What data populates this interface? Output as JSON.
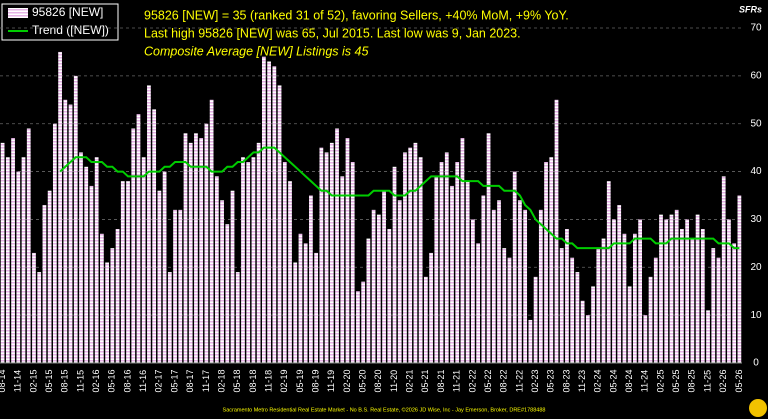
{
  "chart_data": {
    "type": "bar",
    "annotations": [
      "95826 [NEW] = 35 (ranked 31 of 52), favoring Sellers, +40% MoM, +9% YoY.",
      "Last high 95826 [NEW] was 65, Jul 2015. Last low was 9, Jan 2023.",
      "Composite Average [NEW] Listings is 45"
    ],
    "y_axis_label": "SFRs",
    "footer": "Sacramento Metro Residential Real Estate Market - No B.S. Real Estate, ©2026 JD Wise, Inc - Jay Emerson, Broker, DRE#1788488",
    "categories": [
      "08-14",
      null,
      null,
      "11-14",
      null,
      null,
      "02-15",
      null,
      null,
      "05-15",
      null,
      null,
      "08-15",
      null,
      null,
      "11-15",
      null,
      null,
      "02-16",
      null,
      null,
      "05-16",
      null,
      null,
      "08-16",
      null,
      null,
      "11-16",
      null,
      null,
      "02-17",
      null,
      null,
      "05-17",
      null,
      null,
      "08-17",
      null,
      null,
      "11-17",
      null,
      null,
      "02-18",
      null,
      null,
      "05-18",
      null,
      null,
      "08-18",
      null,
      null,
      "11-18",
      null,
      null,
      "02-19",
      null,
      null,
      "05-19",
      null,
      null,
      "08-19",
      null,
      null,
      "11-19",
      null,
      null,
      "02-20",
      null,
      null,
      "05-20",
      null,
      null,
      "08-20",
      null,
      null,
      "11-20",
      null,
      null,
      "02-21",
      null,
      null,
      "05-21",
      null,
      null,
      "08-21",
      null,
      null,
      "11-21",
      null,
      null,
      "02-22",
      null,
      null,
      "05-22",
      null,
      null,
      "08-22",
      null,
      null,
      "11-22",
      null,
      null,
      "02-23",
      null,
      null,
      "05-23",
      null,
      null,
      "08-23",
      null,
      null,
      "11-23",
      null,
      null,
      "02-24",
      null,
      null,
      "05-24",
      null,
      null,
      "08-24",
      null,
      null,
      "11-24",
      null,
      null,
      "02-25",
      null,
      null,
      "05-25",
      null,
      null,
      "08-25",
      null,
      null,
      "11-25",
      null,
      null,
      "02-26",
      null,
      null,
      "05-26"
    ],
    "series": [
      {
        "name": "95826 [NEW]",
        "type": "bar",
        "color": "#e6b3e6",
        "values": [
          46,
          43,
          47,
          40,
          43,
          49,
          23,
          19,
          33,
          36,
          50,
          65,
          55,
          54,
          60,
          44,
          41,
          37,
          43,
          27,
          21,
          24,
          28,
          38,
          38,
          49,
          52,
          43,
          58,
          53,
          36,
          40,
          19,
          32,
          32,
          48,
          46,
          48,
          47,
          50,
          55,
          39,
          34,
          29,
          36,
          19,
          43,
          42,
          43,
          46,
          64,
          63,
          62,
          58,
          42,
          38,
          21,
          27,
          25,
          35,
          23,
          45,
          44,
          46,
          49,
          39,
          47,
          42,
          15,
          17,
          26,
          32,
          31,
          36,
          28,
          41,
          34,
          44,
          45,
          46,
          43,
          18,
          23,
          39,
          42,
          44,
          37,
          42,
          47,
          38,
          30,
          25,
          35,
          48,
          32,
          34,
          24,
          22,
          40,
          34,
          32,
          9,
          18,
          32,
          42,
          43,
          55,
          24,
          28,
          22,
          19,
          13,
          10,
          16,
          24,
          26,
          38,
          30,
          33,
          27,
          16,
          27,
          30,
          10,
          18,
          22,
          31,
          30,
          31,
          32,
          28,
          30,
          26,
          31,
          28,
          11,
          24,
          22,
          39,
          30,
          25,
          35
        ]
      },
      {
        "name": "Trend ([NEW])",
        "type": "line",
        "color": "#00cc00",
        "values": [
          null,
          null,
          null,
          null,
          null,
          null,
          null,
          null,
          null,
          null,
          null,
          40,
          41,
          42,
          43,
          43,
          43,
          42,
          42,
          42,
          41,
          41,
          40,
          40,
          39,
          39,
          39,
          39,
          40,
          40,
          40,
          41,
          41,
          42,
          42,
          42,
          41,
          41,
          41,
          41,
          40,
          40,
          40,
          41,
          41,
          42,
          42,
          43,
          44,
          44,
          45,
          45,
          45,
          44,
          43,
          42,
          41,
          40,
          39,
          38,
          37,
          36,
          36,
          35,
          35,
          35,
          35,
          35,
          35,
          35,
          35,
          36,
          36,
          36,
          36,
          35,
          35,
          35,
          36,
          36,
          37,
          38,
          39,
          39,
          39,
          39,
          39,
          39,
          38,
          38,
          38,
          38,
          37,
          37,
          37,
          37,
          36,
          36,
          36,
          35,
          33,
          32,
          30,
          29,
          28,
          27,
          26,
          26,
          25,
          25,
          24,
          24,
          24,
          24,
          24,
          24,
          24,
          25,
          25,
          25,
          25,
          26,
          26,
          26,
          26,
          25,
          25,
          25,
          26,
          26,
          26,
          26,
          26,
          26,
          26,
          26,
          26,
          25,
          25,
          25,
          24,
          24
        ]
      }
    ],
    "ylim": [
      0,
      70
    ],
    "yticks": [
      0,
      10,
      20,
      30,
      40,
      50,
      60,
      70
    ],
    "grid": true,
    "legend": "top-left"
  }
}
